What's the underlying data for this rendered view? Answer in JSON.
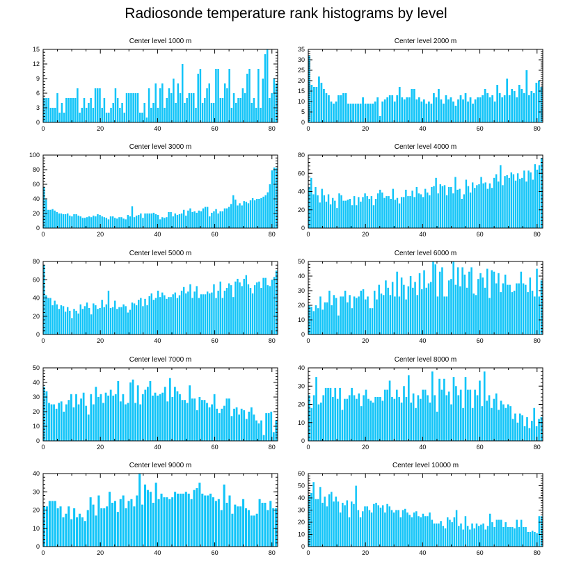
{
  "title": "Radiosonde temperature rank histograms by level",
  "colors": {
    "bar": "#11c4f8",
    "axis": "#000000"
  },
  "chart_data": [
    {
      "type": "bar",
      "title": "Center level 1000 m",
      "xlabel": "",
      "ylabel": "",
      "xlim": [
        0,
        82
      ],
      "ylim": [
        0,
        15
      ],
      "xticks": [
        0,
        20,
        40,
        60,
        80
      ],
      "yticks": [
        0,
        3,
        6,
        9,
        12,
        15
      ],
      "values": [
        5,
        5,
        5,
        3,
        3,
        3,
        6,
        2,
        4,
        2,
        5,
        5,
        5,
        5,
        5,
        7,
        2,
        3,
        5,
        3,
        4,
        5,
        3,
        7,
        7,
        7,
        3,
        5,
        2,
        2,
        3,
        4,
        7,
        5,
        3,
        4,
        2,
        6,
        6,
        6,
        6,
        6,
        6,
        2,
        2,
        4,
        1,
        7,
        3,
        4,
        8,
        3,
        7,
        8,
        3,
        5,
        7,
        6,
        9,
        4,
        8,
        6,
        12,
        4,
        5,
        6,
        6,
        6,
        3,
        10,
        11,
        4,
        5,
        7,
        8,
        4,
        4,
        11,
        11,
        5,
        5,
        8,
        7,
        11,
        3,
        6,
        4,
        5,
        5,
        7,
        6,
        10,
        11,
        4,
        5,
        3,
        11,
        3,
        9,
        14,
        15,
        5,
        6,
        9,
        8
      ]
    },
    {
      "type": "bar",
      "title": "Center level 2000 m",
      "xlabel": "",
      "ylabel": "",
      "xlim": [
        0,
        82
      ],
      "ylim": [
        0,
        35
      ],
      "xticks": [
        0,
        20,
        40,
        60,
        80
      ],
      "yticks": [
        0,
        5,
        10,
        15,
        20,
        25,
        30,
        35
      ],
      "values": [
        32,
        18,
        17,
        17,
        22,
        19,
        16,
        14,
        13,
        10,
        9,
        10,
        13,
        13,
        14,
        14,
        9,
        9,
        9,
        9,
        9,
        9,
        12,
        9,
        9,
        9,
        9,
        10,
        12,
        3,
        10,
        11,
        12,
        13,
        13,
        10,
        13,
        17,
        12,
        11,
        12,
        12,
        16,
        16,
        11,
        12,
        10,
        11,
        9,
        10,
        9,
        14,
        12,
        16,
        11,
        9,
        13,
        11,
        12,
        10,
        8,
        11,
        13,
        11,
        14,
        10,
        12,
        9,
        11,
        12,
        12,
        13,
        16,
        14,
        12,
        13,
        10,
        18,
        14,
        12,
        13,
        21,
        13,
        16,
        15,
        12,
        18,
        16,
        14,
        25,
        13,
        15,
        14,
        19,
        20,
        17
      ]
    },
    {
      "type": "bar",
      "title": "Center level 3000 m",
      "xlabel": "",
      "ylabel": "",
      "xlim": [
        0,
        82
      ],
      "ylim": [
        0,
        100
      ],
      "xticks": [
        0,
        20,
        40,
        60,
        80
      ],
      "yticks": [
        0,
        20,
        40,
        60,
        80,
        100
      ],
      "values": [
        56,
        39,
        25,
        25,
        26,
        24,
        22,
        20,
        20,
        19,
        19,
        20,
        17,
        16,
        19,
        19,
        17,
        16,
        14,
        14,
        15,
        16,
        15,
        17,
        16,
        19,
        18,
        16,
        15,
        14,
        12,
        16,
        16,
        14,
        13,
        15,
        15,
        13,
        12,
        18,
        16,
        30,
        15,
        17,
        18,
        20,
        14,
        20,
        20,
        20,
        20,
        21,
        19,
        18,
        12,
        15,
        14,
        15,
        22,
        22,
        16,
        20,
        18,
        19,
        20,
        25,
        17,
        24,
        27,
        22,
        23,
        21,
        24,
        23,
        27,
        29,
        29,
        16,
        21,
        23,
        26,
        20,
        23,
        23,
        27,
        27,
        29,
        33,
        45,
        39,
        31,
        34,
        31,
        37,
        36,
        34,
        38,
        41,
        38,
        40,
        40,
        41,
        43,
        45,
        49,
        60,
        79,
        83,
        82
      ]
    },
    {
      "type": "bar",
      "title": "Center level 4000 m",
      "xlabel": "",
      "ylabel": "",
      "xlim": [
        0,
        82
      ],
      "ylim": [
        0,
        80
      ],
      "xticks": [
        0,
        20,
        40,
        60,
        80
      ],
      "yticks": [
        0,
        20,
        40,
        60,
        80
      ],
      "values": [
        45,
        55,
        37,
        45,
        36,
        28,
        43,
        36,
        29,
        37,
        26,
        33,
        30,
        22,
        38,
        36,
        30,
        30,
        31,
        32,
        25,
        35,
        25,
        34,
        29,
        34,
        38,
        35,
        32,
        35,
        25,
        32,
        38,
        42,
        39,
        33,
        35,
        35,
        32,
        43,
        31,
        33,
        27,
        34,
        34,
        42,
        35,
        35,
        41,
        34,
        45,
        38,
        37,
        34,
        43,
        39,
        36,
        45,
        46,
        55,
        38,
        48,
        46,
        47,
        36,
        45,
        45,
        38,
        56,
        42,
        43,
        32,
        37,
        53,
        46,
        39,
        50,
        44,
        47,
        48,
        56,
        49,
        50,
        43,
        49,
        44,
        55,
        59,
        51,
        69,
        47,
        57,
        58,
        55,
        61,
        59,
        52,
        60,
        54,
        55,
        63,
        51,
        63,
        61,
        53,
        70,
        64,
        69,
        77
      ]
    },
    {
      "type": "bar",
      "title": "Center level 5000 m",
      "xlabel": "",
      "ylabel": "",
      "xlim": [
        0,
        82
      ],
      "ylim": [
        0,
        80
      ],
      "xticks": [
        0,
        20,
        40,
        60,
        80
      ],
      "yticks": [
        0,
        20,
        40,
        60,
        80
      ],
      "values": [
        76,
        43,
        40,
        40,
        32,
        37,
        33,
        28,
        32,
        31,
        25,
        30,
        26,
        18,
        28,
        26,
        23,
        33,
        28,
        31,
        35,
        29,
        22,
        34,
        32,
        28,
        29,
        38,
        30,
        33,
        48,
        29,
        30,
        37,
        28,
        30,
        30,
        33,
        31,
        24,
        27,
        35,
        34,
        32,
        38,
        40,
        31,
        39,
        32,
        42,
        45,
        38,
        40,
        48,
        41,
        46,
        43,
        39,
        41,
        41,
        44,
        46,
        40,
        43,
        48,
        52,
        45,
        47,
        55,
        40,
        47,
        53,
        40,
        44,
        44,
        44,
        47,
        45,
        46,
        55,
        40,
        48,
        58,
        40,
        48,
        51,
        56,
        54,
        41,
        58,
        61,
        57,
        53,
        61,
        65,
        55,
        51,
        45,
        54,
        57,
        58,
        51,
        62,
        62,
        54,
        53,
        60,
        63,
        70
      ]
    },
    {
      "type": "bar",
      "title": "Center level 6000 m",
      "xlabel": "",
      "ylabel": "",
      "xlim": [
        0,
        82
      ],
      "ylim": [
        0,
        50
      ],
      "xticks": [
        0,
        20,
        40,
        60,
        80
      ],
      "yticks": [
        0,
        10,
        20,
        30,
        40,
        50
      ],
      "values": [
        20,
        19,
        16,
        20,
        18,
        26,
        17,
        22,
        22,
        30,
        20,
        27,
        25,
        13,
        26,
        26,
        30,
        22,
        27,
        18,
        26,
        25,
        26,
        30,
        31,
        24,
        26,
        18,
        18,
        30,
        24,
        34,
        28,
        27,
        37,
        32,
        27,
        36,
        26,
        43,
        26,
        39,
        34,
        24,
        33,
        40,
        32,
        36,
        27,
        42,
        31,
        44,
        32,
        35,
        36,
        50,
        48,
        26,
        43,
        46,
        26,
        26,
        37,
        38,
        50,
        34,
        46,
        33,
        46,
        41,
        32,
        43,
        46,
        28,
        27,
        38,
        42,
        39,
        32,
        45,
        25,
        44,
        43,
        35,
        42,
        29,
        35,
        41,
        34,
        34,
        29,
        30,
        35,
        35,
        43,
        35,
        34,
        29,
        39,
        30,
        26,
        45,
        26,
        37
      ]
    },
    {
      "type": "bar",
      "title": "Center level 7000 m",
      "xlabel": "",
      "ylabel": "",
      "xlim": [
        0,
        82
      ],
      "ylim": [
        0,
        50
      ],
      "xticks": [
        0,
        20,
        40,
        60,
        80
      ],
      "yticks": [
        0,
        10,
        20,
        30,
        40,
        50
      ],
      "values": [
        37,
        34,
        26,
        25,
        25,
        22,
        26,
        27,
        20,
        25,
        28,
        32,
        23,
        32,
        25,
        29,
        33,
        24,
        18,
        32,
        25,
        37,
        30,
        32,
        26,
        33,
        31,
        35,
        31,
        32,
        41,
        27,
        32,
        25,
        26,
        40,
        42,
        26,
        38,
        25,
        32,
        35,
        37,
        41,
        31,
        33,
        31,
        32,
        33,
        37,
        27,
        43,
        30,
        37,
        34,
        32,
        28,
        28,
        26,
        38,
        29,
        29,
        21,
        30,
        28,
        28,
        26,
        23,
        25,
        32,
        22,
        19,
        22,
        24,
        29,
        29,
        17,
        22,
        23,
        18,
        22,
        21,
        15,
        20,
        23,
        18,
        14,
        12,
        14,
        4,
        19,
        19,
        20,
        6,
        14
      ]
    },
    {
      "type": "bar",
      "title": "Center level 8000 m",
      "xlabel": "",
      "ylabel": "",
      "xlim": [
        0,
        82
      ],
      "ylim": [
        0,
        40
      ],
      "xticks": [
        0,
        20,
        40,
        60,
        80
      ],
      "yticks": [
        0,
        10,
        20,
        30,
        40
      ],
      "values": [
        25,
        18,
        25,
        35,
        20,
        21,
        25,
        29,
        29,
        29,
        24,
        29,
        23,
        29,
        17,
        23,
        23,
        25,
        29,
        25,
        23,
        26,
        19,
        25,
        28,
        23,
        22,
        21,
        24,
        24,
        24,
        22,
        28,
        28,
        33,
        24,
        23,
        28,
        24,
        21,
        30,
        24,
        36,
        21,
        26,
        18,
        25,
        23,
        28,
        28,
        25,
        21,
        38,
        25,
        16,
        34,
        28,
        34,
        25,
        27,
        20,
        35,
        30,
        25,
        28,
        18,
        35,
        28,
        28,
        18,
        28,
        25,
        33,
        19,
        38,
        22,
        25,
        18,
        23,
        26,
        17,
        22,
        20,
        18,
        20,
        19,
        12,
        15,
        10,
        15,
        14,
        8,
        13,
        7,
        11,
        18,
        8,
        12,
        13
      ]
    },
    {
      "type": "bar",
      "title": "Center level 9000 m",
      "xlabel": "",
      "ylabel": "",
      "xlim": [
        0,
        82
      ],
      "ylim": [
        0,
        40
      ],
      "xticks": [
        0,
        20,
        40,
        60,
        80
      ],
      "yticks": [
        0,
        10,
        20,
        30,
        40
      ],
      "values": [
        22,
        22,
        25,
        25,
        25,
        21,
        22,
        16,
        18,
        22,
        15,
        21,
        16,
        18,
        16,
        14,
        20,
        27,
        23,
        17,
        28,
        21,
        21,
        22,
        30,
        24,
        25,
        19,
        26,
        28,
        21,
        25,
        26,
        22,
        28,
        40,
        23,
        34,
        31,
        30,
        24,
        35,
        26,
        29,
        27,
        27,
        26,
        27,
        30,
        29,
        29,
        29,
        30,
        29,
        26,
        31,
        32,
        35,
        29,
        28,
        28,
        29,
        27,
        25,
        26,
        20,
        34,
        24,
        28,
        18,
        23,
        22,
        22,
        26,
        21,
        20,
        17,
        17,
        18,
        26,
        24,
        24,
        20,
        25,
        21,
        21
      ]
    },
    {
      "type": "bar",
      "title": "Center level 10000 m",
      "xlabel": "",
      "ylabel": "",
      "xlim": [
        0,
        82
      ],
      "ylim": [
        0,
        60
      ],
      "xticks": [
        0,
        20,
        40,
        60,
        80
      ],
      "yticks": [
        0,
        10,
        20,
        30,
        40,
        50,
        60
      ],
      "values": [
        42,
        44,
        53,
        39,
        39,
        49,
        36,
        41,
        33,
        43,
        45,
        37,
        41,
        37,
        28,
        36,
        34,
        38,
        24,
        37,
        35,
        50,
        30,
        24,
        29,
        33,
        33,
        30,
        28,
        35,
        36,
        34,
        32,
        34,
        28,
        35,
        33,
        30,
        28,
        30,
        30,
        24,
        30,
        31,
        28,
        26,
        24,
        28,
        29,
        25,
        24,
        27,
        25,
        25,
        28,
        22,
        19,
        19,
        19,
        21,
        17,
        15,
        24,
        22,
        20,
        24,
        30,
        17,
        19,
        14,
        25,
        17,
        14,
        19,
        15,
        19,
        17,
        18,
        19,
        14,
        17,
        27,
        20,
        16,
        22,
        22,
        22,
        16,
        20,
        16,
        16,
        16,
        15,
        22,
        16,
        22,
        16,
        16,
        12,
        12,
        13,
        12,
        11,
        25,
        25
      ]
    }
  ]
}
